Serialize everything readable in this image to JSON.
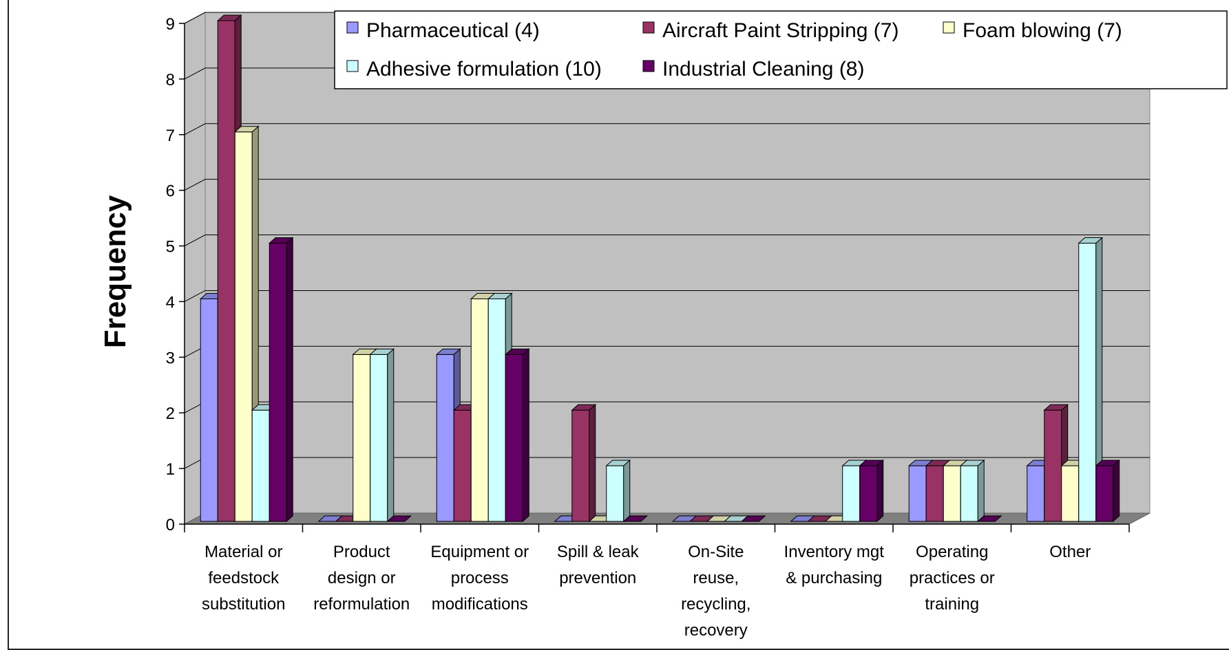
{
  "chart_data": {
    "type": "bar",
    "title": "",
    "xlabel": "",
    "ylabel": "Frequency",
    "ylim": [
      0,
      9
    ],
    "yticks": [
      "0",
      "1",
      "2",
      "3",
      "4",
      "5",
      "6",
      "7",
      "8",
      "9"
    ],
    "grid": true,
    "legend_position": "top",
    "categories": [
      [
        "Material or",
        "feedstock",
        "substitution"
      ],
      [
        "Product",
        "design or",
        "reformulation"
      ],
      [
        "Equipment or",
        "process",
        "modifications"
      ],
      [
        "Spill & leak",
        "prevention"
      ],
      [
        "On-Site",
        "reuse,",
        "recycling,",
        "recovery"
      ],
      [
        "Inventory mgt",
        "& purchasing"
      ],
      [
        "Operating",
        "practices or",
        "training"
      ],
      [
        "Other"
      ]
    ],
    "series": [
      {
        "name": "Pharmaceutical (4)",
        "color": "#9999ff",
        "values": [
          4,
          0,
          3,
          0,
          0,
          0,
          1,
          1
        ]
      },
      {
        "name": "Aircraft Paint Stripping (7)",
        "color": "#993366",
        "values": [
          9,
          0,
          2,
          2,
          0,
          0,
          1,
          2
        ]
      },
      {
        "name": "Foam blowing (7)",
        "color": "#ffffcc",
        "values": [
          7,
          3,
          4,
          0,
          0,
          0,
          1,
          1
        ]
      },
      {
        "name": "Adhesive formulation (10)",
        "color": "#ccffff",
        "values": [
          2,
          3,
          4,
          1,
          0,
          1,
          1,
          5
        ]
      },
      {
        "name": "Industrial Cleaning (8)",
        "color": "#660066",
        "values": [
          5,
          0,
          3,
          0,
          0,
          1,
          0,
          1
        ]
      }
    ],
    "colors": {
      "plot_background": "#c0c0c0",
      "floor": "#808080",
      "gridline": "#000000"
    }
  }
}
